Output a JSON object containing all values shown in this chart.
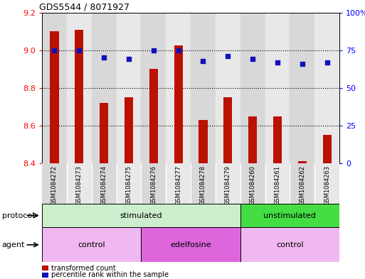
{
  "title": "GDS5544 / 8071927",
  "samples": [
    "GSM1084272",
    "GSM1084273",
    "GSM1084274",
    "GSM1084275",
    "GSM1084276",
    "GSM1084277",
    "GSM1084278",
    "GSM1084279",
    "GSM1084260",
    "GSM1084261",
    "GSM1084262",
    "GSM1084263"
  ],
  "transformed_count": [
    9.1,
    9.11,
    8.72,
    8.75,
    8.9,
    9.025,
    8.63,
    8.75,
    8.65,
    8.65,
    8.41,
    8.55
  ],
  "percentile_rank": [
    75,
    75,
    70,
    69,
    75,
    75,
    68,
    71,
    69,
    67,
    66,
    67
  ],
  "ylim_left": [
    8.4,
    9.2
  ],
  "ylim_right": [
    0,
    100
  ],
  "yticks_left": [
    8.4,
    8.6,
    8.8,
    9.0,
    9.2
  ],
  "yticks_right": [
    0,
    25,
    50,
    75,
    100
  ],
  "bar_color": "#bb1100",
  "dot_color": "#1111bb",
  "protocol_groups": [
    {
      "label": "stimulated",
      "start": 0,
      "end": 8,
      "color": "#cceecc"
    },
    {
      "label": "unstimulated",
      "start": 8,
      "end": 12,
      "color": "#44dd44"
    }
  ],
  "agent_groups": [
    {
      "label": "control",
      "start": 0,
      "end": 4,
      "color": "#f0b8f0"
    },
    {
      "label": "edelfosine",
      "start": 4,
      "end": 8,
      "color": "#dd66dd"
    },
    {
      "label": "control",
      "start": 8,
      "end": 12,
      "color": "#f0b8f0"
    }
  ],
  "protocol_label": "protocol",
  "agent_label": "agent",
  "legend_bar_label": "transformed count",
  "legend_dot_label": "percentile rank within the sample",
  "col_bg_even": "#d8d8d8",
  "col_bg_odd": "#e8e8e8",
  "plot_bg_color": "#ffffff",
  "right_tick_labels": [
    "0",
    "25",
    "50",
    "75",
    "100%"
  ]
}
